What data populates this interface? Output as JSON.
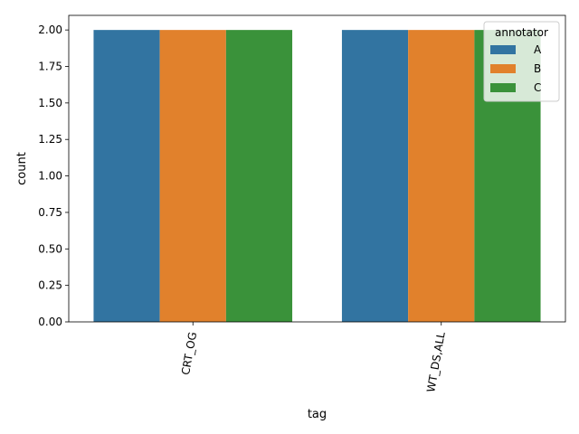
{
  "chart_data": {
    "type": "bar",
    "title": "",
    "xlabel": "tag",
    "ylabel": "count",
    "categories": [
      "CRT_OG",
      "WT_DS,ALL"
    ],
    "series": [
      {
        "name": "A",
        "values": [
          2,
          2
        ],
        "color": "#3274a1"
      },
      {
        "name": "B",
        "values": [
          2,
          2
        ],
        "color": "#e1812c"
      },
      {
        "name": "C",
        "values": [
          2,
          2
        ],
        "color": "#3a923a"
      }
    ],
    "ylim": [
      0,
      2.1
    ],
    "yticks": [
      "0.00",
      "0.25",
      "0.50",
      "0.75",
      "1.00",
      "1.25",
      "1.50",
      "1.75",
      "2.00"
    ],
    "legend": {
      "title": "annotator",
      "position": "top-right"
    },
    "grid": false,
    "x_tick_rotation": "rotated-80"
  }
}
